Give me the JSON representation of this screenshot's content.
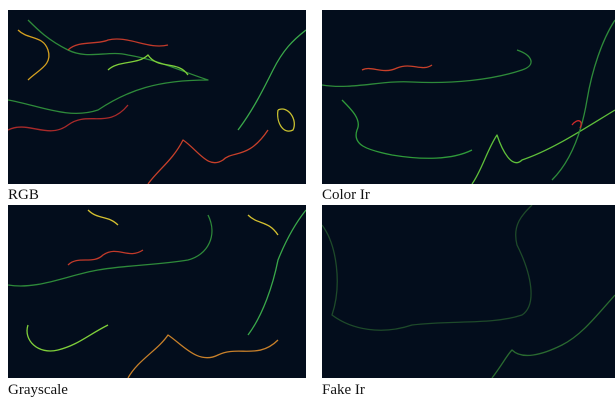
{
  "panels": [
    {
      "label": "RGB"
    },
    {
      "label": "Color Ir"
    },
    {
      "label": "Grayscale"
    },
    {
      "label": "Fake Ir"
    }
  ]
}
